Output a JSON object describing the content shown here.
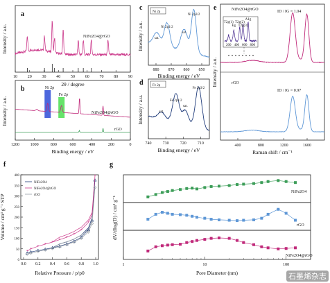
{
  "colors": {
    "pink": "#cc3b8c",
    "magenta": "#c0297a",
    "blue": "#5e97d6",
    "green": "#3c9d58",
    "gray": "#9aa0a6",
    "purple": "#4a2d8f",
    "navy": "#1f3b7a",
    "red": "#d81f3a",
    "bar_blue": "#3a57d9",
    "bar_green": "#55e05a"
  },
  "chart_data": [
    {
      "id": "a",
      "type": "line",
      "xlabel": "2θ / degree",
      "ylabel": "Intensity / a.u.",
      "xlim": [
        10,
        90
      ],
      "xticks": [
        10,
        20,
        30,
        40,
        50,
        60,
        70,
        80,
        90
      ],
      "legend": "NiFe2O4@rGO",
      "peaks": [
        18.4,
        30.3,
        35.7,
        37.3,
        43.3,
        53.8,
        57.3,
        62.9,
        74.5
      ],
      "ref_sticks": [
        18.4,
        30.3,
        35.7,
        37.3,
        43.3,
        53.8,
        57.3,
        62.9
      ]
    },
    {
      "id": "b",
      "type": "line",
      "xlabel": "Binding energy / eV",
      "ylabel": "Intensity / a.u.",
      "xlim": [
        1200,
        0
      ],
      "xticks": [
        1200,
        1000,
        800,
        600,
        400,
        200,
        0
      ],
      "series": [
        {
          "name": "NiFe2O4@rGO"
        },
        {
          "name": "rGO"
        }
      ],
      "highlights": [
        {
          "label": "Ni 2p",
          "center": 862
        },
        {
          "label": "Fe 2p",
          "center": 718
        }
      ]
    },
    {
      "id": "c",
      "type": "line",
      "xlabel": "Binding energy / eV",
      "ylabel": "Intensity / a.u.",
      "xlim": [
        885,
        845
      ],
      "xticks": [
        880,
        870,
        860,
        850
      ],
      "tag": "Ni 2p",
      "annotations": [
        {
          "text": "Ni 2p1/2",
          "x": 872.8
        },
        {
          "text": "Ni 2p3/2",
          "x": 855.2
        },
        {
          "text": "sat.",
          "x": 879.5
        },
        {
          "text": "sat.",
          "x": 861.5
        }
      ]
    },
    {
      "id": "d",
      "type": "line",
      "xlabel": "Binding energy / eV",
      "ylabel": "Intensity / a.u.",
      "xlim": [
        740,
        705
      ],
      "xticks": [
        740,
        730,
        720,
        710
      ],
      "tag": "Fe 2p",
      "annotations": [
        {
          "text": "Fe 2p1/2",
          "x": 724.2
        },
        {
          "text": "Fe 2p3/2",
          "x": 711.2
        },
        {
          "text": "sat.",
          "x": 732.5
        },
        {
          "text": "sat.",
          "x": 718.8
        }
      ]
    },
    {
      "id": "e",
      "type": "line",
      "xlabel": "Raman shift / cm⁻¹",
      "ylabel": "Intensity / a.u.",
      "xlim": [
        100,
        1900
      ],
      "xticks": [
        400,
        800,
        1200,
        1600
      ],
      "series": [
        {
          "name": "NiFe2O4@rGO",
          "ratio": "ID / IG = 1.04"
        },
        {
          "name": "rGO",
          "ratio": "ID / IG = 0.97"
        }
      ],
      "inset_labels": [
        "T2g(1)",
        "Eg",
        "T2g(2)",
        "T2g(3)",
        "A1g"
      ],
      "inset_xticks": [
        "200",
        "400",
        "600",
        "800"
      ]
    },
    {
      "id": "f",
      "type": "line",
      "xlabel": "Relative Pressure / p/p0",
      "ylabel": "Volume / cm³ g⁻¹ STP",
      "xlim": [
        0,
        1.0
      ],
      "ylim": [
        0,
        400
      ],
      "xticks": [
        0.0,
        0.2,
        0.4,
        0.6,
        0.8,
        1.0
      ],
      "yticks": [
        0,
        50,
        100,
        150,
        200,
        250,
        300,
        350,
        400
      ],
      "series": [
        {
          "name": "NiFe2O4",
          "marker": "triangle",
          "x": [
            0.05,
            0.1,
            0.2,
            0.3,
            0.4,
            0.5,
            0.6,
            0.7,
            0.8,
            0.9,
            0.95,
            0.99
          ],
          "y": [
            30,
            35,
            42,
            48,
            55,
            63,
            73,
            86,
            105,
            140,
            185,
            375
          ]
        },
        {
          "name": "NiFe2O4@rGO",
          "marker": "star",
          "x": [
            0.05,
            0.1,
            0.2,
            0.3,
            0.4,
            0.5,
            0.6,
            0.7,
            0.8,
            0.9,
            0.95,
            0.99
          ],
          "y": [
            40,
            50,
            62,
            72,
            82,
            93,
            105,
            120,
            140,
            175,
            210,
            395
          ]
        },
        {
          "name": "rGO",
          "marker": "diamond",
          "x": [
            0.05,
            0.1,
            0.2,
            0.3,
            0.4,
            0.5,
            0.6,
            0.7,
            0.8,
            0.9,
            0.95,
            0.99
          ],
          "y": [
            25,
            30,
            38,
            45,
            52,
            60,
            70,
            82,
            100,
            130,
            170,
            340
          ]
        }
      ]
    },
    {
      "id": "g",
      "type": "scatter",
      "xlabel": "Pore Diameter (nm)",
      "ylabel": "dV/dlog(D) / cm³ g⁻¹",
      "xscale": "log",
      "xlim": [
        1,
        200
      ],
      "xticks": [
        1,
        10,
        100
      ],
      "series": [
        {
          "name": "NiFe2O4",
          "x": [
            2,
            2.5,
            3,
            3.5,
            4,
            5,
            6,
            7,
            8,
            10,
            12,
            15,
            20,
            25,
            30,
            40,
            50,
            60,
            80,
            100,
            130
          ],
          "y": [
            0.18,
            0.3,
            0.4,
            0.45,
            0.5,
            0.55,
            0.6,
            0.62,
            0.58,
            0.65,
            0.7,
            0.72,
            0.75,
            0.8,
            0.82,
            0.85,
            0.9,
            0.95,
            1.0,
            0.95,
            0.9
          ]
        },
        {
          "name": "rGO",
          "x": [
            2,
            2.5,
            3,
            3.5,
            4,
            5,
            6,
            7,
            8,
            10,
            12,
            15,
            20,
            25,
            30,
            40,
            50,
            60,
            80,
            100,
            130
          ],
          "y": [
            0.45,
            0.7,
            0.8,
            0.75,
            0.7,
            0.68,
            0.65,
            0.6,
            0.55,
            0.5,
            0.45,
            0.42,
            0.4,
            0.38,
            0.4,
            0.42,
            0.5,
            0.7,
            0.95,
            0.75,
            0.4
          ]
        },
        {
          "name": "NiFe2O4@rGO",
          "x": [
            2,
            2.5,
            3,
            3.5,
            4,
            5,
            6,
            7,
            8,
            10,
            12,
            15,
            20,
            25,
            30,
            40,
            50,
            60,
            80,
            100,
            130
          ],
          "y": [
            0.3,
            0.5,
            0.55,
            0.58,
            0.6,
            0.62,
            0.7,
            0.75,
            0.8,
            0.85,
            0.9,
            0.92,
            0.9,
            0.8,
            0.7,
            0.6,
            0.5,
            0.45,
            0.4,
            0.42,
            0.45
          ]
        }
      ]
    }
  ],
  "watermark": "石墨烯杂志"
}
